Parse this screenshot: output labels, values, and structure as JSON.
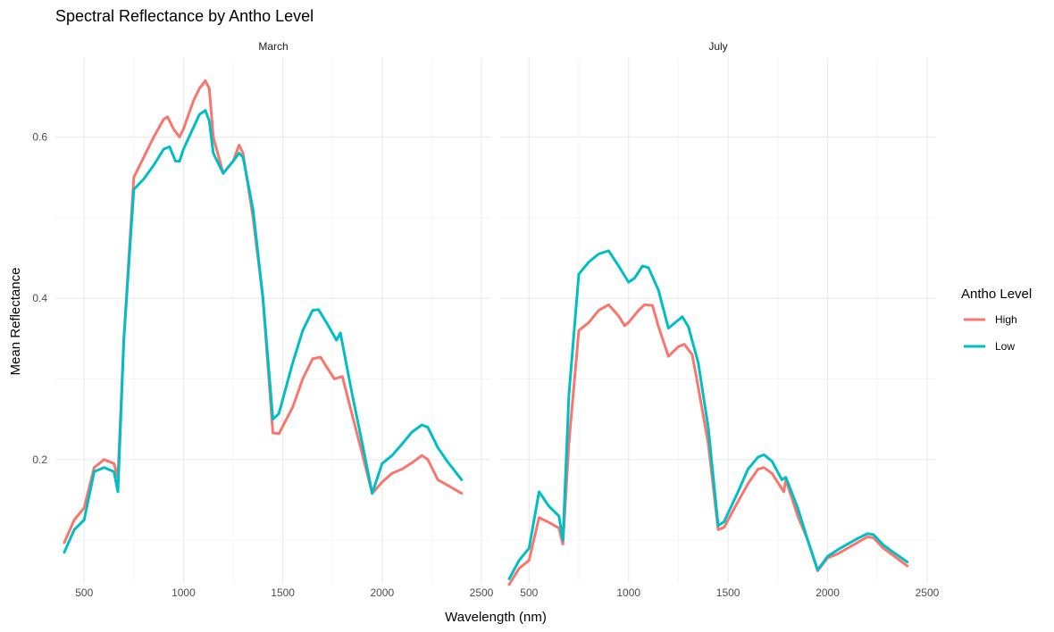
{
  "chart_data": {
    "type": "line",
    "title": "Spectral Reflectance by Antho Level",
    "xlabel": "Wavelength (nm)",
    "ylabel": "Mean Reflectance",
    "xlim": [
      355,
      2545
    ],
    "ylim": [
      0.047,
      0.698
    ],
    "x_ticks": [
      500,
      1000,
      1500,
      2000,
      2500
    ],
    "y_ticks": [
      0.2,
      0.4,
      0.6
    ],
    "grid": true,
    "legend": {
      "title": "Antho Level",
      "position": "right"
    },
    "colors": {
      "High": "#F8766D",
      "Low": "#00BFC4"
    },
    "facets": [
      {
        "label": "March",
        "series": [
          {
            "name": "High",
            "points": [
              [
                400,
                0.097
              ],
              [
                450,
                0.125
              ],
              [
                500,
                0.14
              ],
              [
                550,
                0.19
              ],
              [
                600,
                0.2
              ],
              [
                650,
                0.195
              ],
              [
                670,
                0.178
              ],
              [
                700,
                0.35
              ],
              [
                750,
                0.55
              ],
              [
                800,
                0.575
              ],
              [
                850,
                0.6
              ],
              [
                900,
                0.622
              ],
              [
                920,
                0.625
              ],
              [
                950,
                0.61
              ],
              [
                980,
                0.6
              ],
              [
                1000,
                0.61
              ],
              [
                1050,
                0.645
              ],
              [
                1080,
                0.66
              ],
              [
                1110,
                0.67
              ],
              [
                1130,
                0.66
              ],
              [
                1150,
                0.6
              ],
              [
                1200,
                0.555
              ],
              [
                1250,
                0.57
              ],
              [
                1280,
                0.59
              ],
              [
                1300,
                0.58
              ],
              [
                1350,
                0.5
              ],
              [
                1400,
                0.4
              ],
              [
                1450,
                0.233
              ],
              [
                1480,
                0.232
              ],
              [
                1550,
                0.265
              ],
              [
                1600,
                0.3
              ],
              [
                1650,
                0.325
              ],
              [
                1690,
                0.327
              ],
              [
                1720,
                0.315
              ],
              [
                1760,
                0.3
              ],
              [
                1800,
                0.303
              ],
              [
                1850,
                0.255
              ],
              [
                1900,
                0.207
              ],
              [
                1950,
                0.158
              ],
              [
                2000,
                0.172
              ],
              [
                2050,
                0.183
              ],
              [
                2100,
                0.188
              ],
              [
                2150,
                0.196
              ],
              [
                2200,
                0.205
              ],
              [
                2230,
                0.2
              ],
              [
                2280,
                0.175
              ],
              [
                2330,
                0.168
              ],
              [
                2400,
                0.158
              ]
            ]
          },
          {
            "name": "Low",
            "points": [
              [
                400,
                0.085
              ],
              [
                450,
                0.113
              ],
              [
                500,
                0.125
              ],
              [
                550,
                0.185
              ],
              [
                600,
                0.19
              ],
              [
                650,
                0.185
              ],
              [
                670,
                0.16
              ],
              [
                700,
                0.35
              ],
              [
                750,
                0.535
              ],
              [
                800,
                0.548
              ],
              [
                850,
                0.565
              ],
              [
                900,
                0.585
              ],
              [
                930,
                0.588
              ],
              [
                960,
                0.57
              ],
              [
                980,
                0.57
              ],
              [
                1000,
                0.585
              ],
              [
                1050,
                0.612
              ],
              [
                1080,
                0.628
              ],
              [
                1110,
                0.633
              ],
              [
                1130,
                0.62
              ],
              [
                1150,
                0.58
              ],
              [
                1200,
                0.555
              ],
              [
                1250,
                0.57
              ],
              [
                1280,
                0.58
              ],
              [
                1300,
                0.575
              ],
              [
                1350,
                0.51
              ],
              [
                1400,
                0.4
              ],
              [
                1450,
                0.25
              ],
              [
                1480,
                0.257
              ],
              [
                1550,
                0.32
              ],
              [
                1600,
                0.36
              ],
              [
                1650,
                0.385
              ],
              [
                1680,
                0.386
              ],
              [
                1720,
                0.37
              ],
              [
                1770,
                0.348
              ],
              [
                1790,
                0.357
              ],
              [
                1850,
                0.28
              ],
              [
                1900,
                0.22
              ],
              [
                1950,
                0.158
              ],
              [
                2000,
                0.195
              ],
              [
                2050,
                0.205
              ],
              [
                2100,
                0.219
              ],
              [
                2150,
                0.234
              ],
              [
                2200,
                0.243
              ],
              [
                2230,
                0.24
              ],
              [
                2280,
                0.215
              ],
              [
                2330,
                0.197
              ],
              [
                2400,
                0.175
              ]
            ]
          }
        ]
      },
      {
        "label": "July",
        "series": [
          {
            "name": "High",
            "points": [
              [
                400,
                0.045
              ],
              [
                450,
                0.065
              ],
              [
                500,
                0.075
              ],
              [
                550,
                0.128
              ],
              [
                600,
                0.122
              ],
              [
                650,
                0.115
              ],
              [
                670,
                0.095
              ],
              [
                700,
                0.22
              ],
              [
                750,
                0.36
              ],
              [
                800,
                0.37
              ],
              [
                850,
                0.385
              ],
              [
                900,
                0.392
              ],
              [
                950,
                0.378
              ],
              [
                980,
                0.366
              ],
              [
                1000,
                0.37
              ],
              [
                1050,
                0.385
              ],
              [
                1080,
                0.392
              ],
              [
                1120,
                0.391
              ],
              [
                1150,
                0.365
              ],
              [
                1200,
                0.328
              ],
              [
                1250,
                0.34
              ],
              [
                1280,
                0.343
              ],
              [
                1320,
                0.33
              ],
              [
                1350,
                0.29
              ],
              [
                1400,
                0.22
              ],
              [
                1450,
                0.113
              ],
              [
                1480,
                0.116
              ],
              [
                1550,
                0.148
              ],
              [
                1600,
                0.17
              ],
              [
                1650,
                0.188
              ],
              [
                1680,
                0.19
              ],
              [
                1720,
                0.183
              ],
              [
                1780,
                0.16
              ],
              [
                1790,
                0.175
              ],
              [
                1850,
                0.13
              ],
              [
                1900,
                0.1
              ],
              [
                1950,
                0.062
              ],
              [
                2000,
                0.078
              ],
              [
                2050,
                0.083
              ],
              [
                2100,
                0.09
              ],
              [
                2150,
                0.097
              ],
              [
                2200,
                0.104
              ],
              [
                2230,
                0.103
              ],
              [
                2280,
                0.09
              ],
              [
                2330,
                0.081
              ],
              [
                2400,
                0.068
              ]
            ]
          },
          {
            "name": "Low",
            "points": [
              [
                400,
                0.052
              ],
              [
                450,
                0.075
              ],
              [
                500,
                0.09
              ],
              [
                550,
                0.16
              ],
              [
                600,
                0.142
              ],
              [
                650,
                0.13
              ],
              [
                670,
                0.1
              ],
              [
                700,
                0.28
              ],
              [
                750,
                0.43
              ],
              [
                800,
                0.445
              ],
              [
                850,
                0.455
              ],
              [
                900,
                0.459
              ],
              [
                950,
                0.44
              ],
              [
                1000,
                0.42
              ],
              [
                1030,
                0.425
              ],
              [
                1070,
                0.44
              ],
              [
                1100,
                0.438
              ],
              [
                1150,
                0.41
              ],
              [
                1200,
                0.363
              ],
              [
                1250,
                0.373
              ],
              [
                1270,
                0.377
              ],
              [
                1300,
                0.365
              ],
              [
                1350,
                0.32
              ],
              [
                1400,
                0.24
              ],
              [
                1450,
                0.118
              ],
              [
                1480,
                0.123
              ],
              [
                1550,
                0.16
              ],
              [
                1600,
                0.188
              ],
              [
                1650,
                0.203
              ],
              [
                1680,
                0.206
              ],
              [
                1720,
                0.198
              ],
              [
                1770,
                0.175
              ],
              [
                1790,
                0.178
              ],
              [
                1850,
                0.14
              ],
              [
                1900,
                0.1
              ],
              [
                1950,
                0.063
              ],
              [
                2000,
                0.08
              ],
              [
                2050,
                0.088
              ],
              [
                2100,
                0.095
              ],
              [
                2150,
                0.102
              ],
              [
                2200,
                0.108
              ],
              [
                2230,
                0.107
              ],
              [
                2280,
                0.094
              ],
              [
                2330,
                0.085
              ],
              [
                2400,
                0.073
              ]
            ]
          }
        ]
      }
    ]
  }
}
